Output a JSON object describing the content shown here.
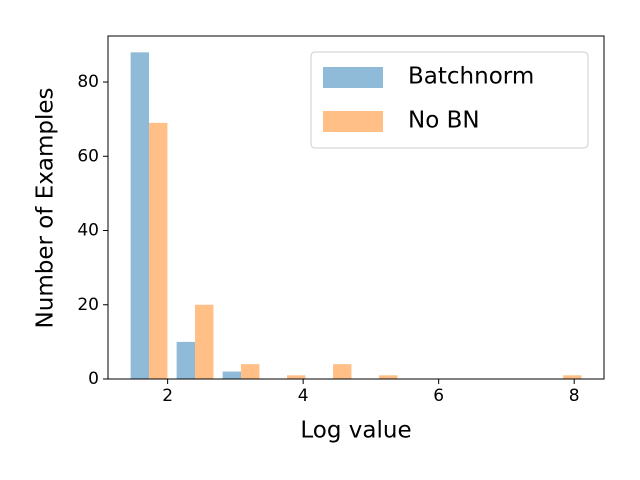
{
  "chart_data": {
    "type": "histogram",
    "x_label": "Log value",
    "y_label": "Number of Examples",
    "bins": [
      1.386,
      2.065,
      2.744,
      3.423,
      4.102,
      4.781,
      5.46,
      6.139,
      6.818,
      7.497,
      8.176
    ],
    "series": [
      {
        "name": "Batchnorm",
        "color": "#8fbbd9",
        "values": [
          88,
          10,
          2,
          0,
          0,
          0,
          0,
          0,
          0,
          0
        ]
      },
      {
        "name": "No BN",
        "color": "#ffbf86",
        "values": [
          69,
          20,
          4,
          1,
          4,
          1,
          0,
          0,
          0,
          1
        ]
      }
    ],
    "xlim": [
      1.12,
      8.44
    ],
    "xticks": [
      2,
      4,
      6,
      8
    ],
    "ylim": [
      0,
      92.4
    ],
    "yticks": [
      0,
      20,
      40,
      60,
      80
    ],
    "legend": "upper right",
    "grid": false
  }
}
